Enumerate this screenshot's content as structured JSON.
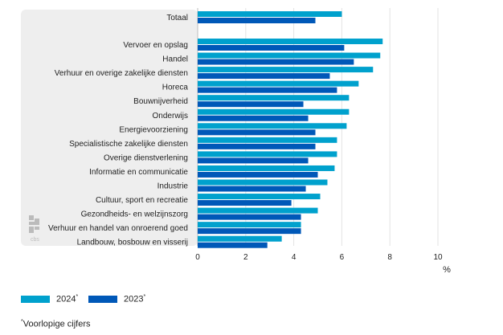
{
  "chart_data": {
    "type": "bar",
    "orientation": "horizontal",
    "categories": [
      "Totaal",
      "Vervoer en opslag",
      "Handel",
      "Verhuur en overige zakelijke diensten",
      "Horeca",
      "Bouwnijverheid",
      "Onderwijs",
      "Energievoorziening",
      "Specialistische zakelijke diensten",
      "Overige dienstverlening",
      "Informatie en communicatie",
      "Industrie",
      "Cultuur, sport en recreatie",
      "Gezondheids- en welzijnszorg",
      "Verhuur en handel van onroerend goed",
      "Landbouw, bosbouw en visserij"
    ],
    "series": [
      {
        "name": "2024",
        "color": "#00a1cd",
        "values": [
          6.0,
          7.7,
          7.6,
          7.3,
          6.7,
          6.3,
          6.3,
          6.2,
          5.8,
          5.8,
          5.7,
          5.4,
          5.1,
          5.0,
          4.3,
          3.5
        ]
      },
      {
        "name": "2023",
        "color": "#0058b8",
        "values": [
          4.9,
          6.1,
          6.5,
          5.5,
          5.8,
          4.4,
          4.6,
          4.9,
          4.9,
          4.6,
          5.0,
          4.5,
          3.9,
          4.3,
          4.3,
          2.9
        ]
      }
    ],
    "xlim": [
      0,
      10
    ],
    "xticks": [
      0,
      2,
      4,
      6,
      8,
      10
    ],
    "xlabel": "%",
    "grid": true,
    "legend_position": "bottom-left"
  },
  "legend": {
    "items": [
      {
        "label": "2024",
        "sup": "*",
        "color": "#00a1cd"
      },
      {
        "label": "2023",
        "sup": "*",
        "color": "#0058b8"
      }
    ]
  },
  "footnote": {
    "sup": "*",
    "text": "Voorlopige cijfers"
  },
  "logo": {
    "text": "cbs"
  }
}
